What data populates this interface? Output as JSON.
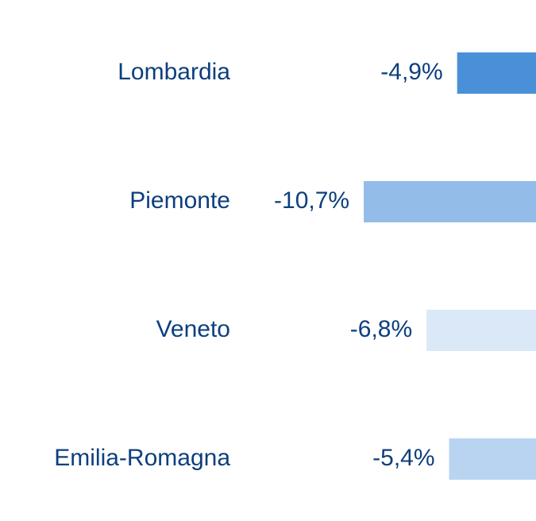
{
  "chart_data": {
    "type": "bar",
    "orientation": "horizontal",
    "categories": [
      "Lombardia",
      "Piemonte",
      "Veneto",
      "Emilia-Romagna"
    ],
    "values": [
      -4.9,
      -10.7,
      -6.8,
      -5.4
    ],
    "value_labels": [
      "-4,9%",
      "-10,7%",
      "-6,8%",
      "-5,4%"
    ],
    "colors": [
      "#4a90d9",
      "#93bde8",
      "#dbe8f7",
      "#b8d4f0"
    ],
    "xlim": [
      -11,
      0
    ]
  }
}
